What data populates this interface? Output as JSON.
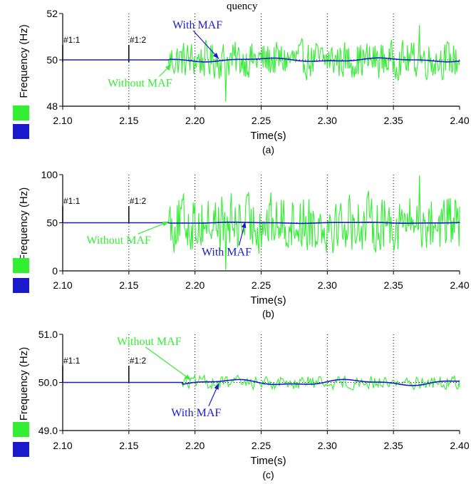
{
  "top_title_fragment": "quency",
  "colors": {
    "without": "#33ee33",
    "with": "#1a1acc",
    "grid": "#000000"
  },
  "chart_data": [
    {
      "type": "line",
      "panel_label": "(a)",
      "xlabel": "Time(s)",
      "ylabel": "Frequency (Hz)",
      "xlim": [
        2.1,
        2.4
      ],
      "ylim": [
        48,
        52
      ],
      "x_ticks": [
        "2.10",
        "2.15",
        "2.20",
        "2.25",
        "2.30",
        "2.35",
        "2.40"
      ],
      "y_ticks": [
        "48",
        "50",
        "52"
      ],
      "y_tick_values": [
        48,
        50,
        52
      ],
      "markers": [
        {
          "label": "#1:1",
          "x": 2.1
        },
        {
          "label": "#1:2",
          "x": 2.15
        }
      ],
      "series": [
        {
          "name": "Without MAF",
          "base": 50,
          "start": 2.18,
          "amp": 0.75,
          "peak_max": 51.5,
          "peak_min": 48.2
        },
        {
          "name": "With MAF",
          "base": 50,
          "start": 2.18,
          "amp": 0.08
        }
      ],
      "annotations": [
        {
          "text": "With MAF",
          "series": "With MAF",
          "text_x": 2.183,
          "text_y": 51.35,
          "point_x": 2.218,
          "point_y": 50.05
        },
        {
          "text": "Without MAF",
          "series": "Without MAF",
          "text_x": 2.134,
          "text_y": 48.85,
          "point_x": 2.182,
          "point_y": 49.8
        }
      ]
    },
    {
      "type": "line",
      "panel_label": "(b)",
      "xlabel": "Time(s)",
      "ylabel": "Frequency (Hz)",
      "xlim": [
        2.1,
        2.4
      ],
      "ylim": [
        0,
        100
      ],
      "x_ticks": [
        "2.10",
        "2.15",
        "2.20",
        "2.25",
        "2.30",
        "2.35",
        "2.40"
      ],
      "y_ticks": [
        "0",
        "50",
        "100"
      ],
      "y_tick_values": [
        0,
        50,
        100
      ],
      "markers": [
        {
          "label": "#1:1",
          "x": 2.1
        },
        {
          "label": "#1:2",
          "x": 2.15
        }
      ],
      "series": [
        {
          "name": "Without MAF",
          "base": 50,
          "start": 2.18,
          "amp": 28,
          "peak_max": 99,
          "peak_min": 1
        },
        {
          "name": "With MAF",
          "base": 50,
          "start": 2.18,
          "amp": 0.6
        }
      ],
      "annotations": [
        {
          "text": "Without MAF",
          "series": "Without MAF",
          "text_x": 2.118,
          "text_y": 28,
          "point_x": 2.18,
          "point_y": 51
        },
        {
          "text": "With MAF",
          "series": "With MAF",
          "text_x": 2.205,
          "text_y": 16,
          "point_x": 2.238,
          "point_y": 51
        }
      ]
    },
    {
      "type": "line",
      "panel_label": "(c)",
      "xlabel": "Time(s)",
      "ylabel": "Frequency (Hz)",
      "xlim": [
        2.1,
        2.4
      ],
      "ylim": [
        49,
        51
      ],
      "x_ticks": [
        "2.10",
        "2.15",
        "2.20",
        "2.25",
        "2.30",
        "2.35",
        "2.40"
      ],
      "y_ticks": [
        "49.0",
        "50.0",
        "51.0"
      ],
      "y_tick_values": [
        49,
        50,
        51
      ],
      "markers": [
        {
          "label": "#1:1",
          "x": 2.1
        },
        {
          "label": "#1:2",
          "x": 2.15
        }
      ],
      "series": [
        {
          "name": "Without MAF",
          "base": 50,
          "start": 2.19,
          "amp": 0.13
        },
        {
          "name": "With MAF",
          "base": 50,
          "start": 2.19,
          "amp": 0.06
        }
      ],
      "annotations": [
        {
          "text": "Without MAF",
          "series": "Without MAF",
          "text_x": 2.141,
          "text_y": 50.78,
          "point_x": 2.197,
          "point_y": 50.05
        },
        {
          "text": "With MAF",
          "series": "With MAF",
          "text_x": 2.182,
          "text_y": 49.3,
          "point_x": 2.218,
          "point_y": 49.98
        }
      ]
    }
  ]
}
